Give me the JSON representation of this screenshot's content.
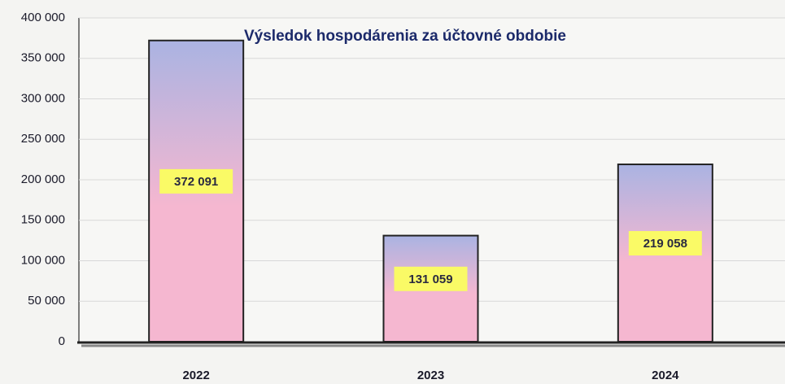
{
  "chart_data": {
    "type": "bar",
    "title": "Výsledok hospodárenia za účtovné obdobie",
    "categories": [
      "2022",
      "2023",
      "2024"
    ],
    "values": [
      372091,
      131059,
      219058
    ],
    "value_labels": [
      "372 091",
      "131 059",
      "219 058"
    ],
    "color": [
      "#aab3e2",
      "#f5b7d0"
    ],
    "ylim": [
      0,
      400000
    ],
    "yticks": [
      0,
      {
        "value": 50000,
        "label": "50 000"
      },
      {
        "value": 100000,
        "label": "100 000"
      },
      {
        "value": 150000,
        "label": "150 000"
      },
      {
        "value": 200000,
        "label": "200 000"
      },
      {
        "value": 250000,
        "label": "250 000"
      },
      {
        "value": 300000,
        "label": "300 000"
      },
      {
        "value": 350000,
        "label": "350 000"
      },
      {
        "value": 400000,
        "label": "400 000"
      }
    ],
    "grid": true
  }
}
